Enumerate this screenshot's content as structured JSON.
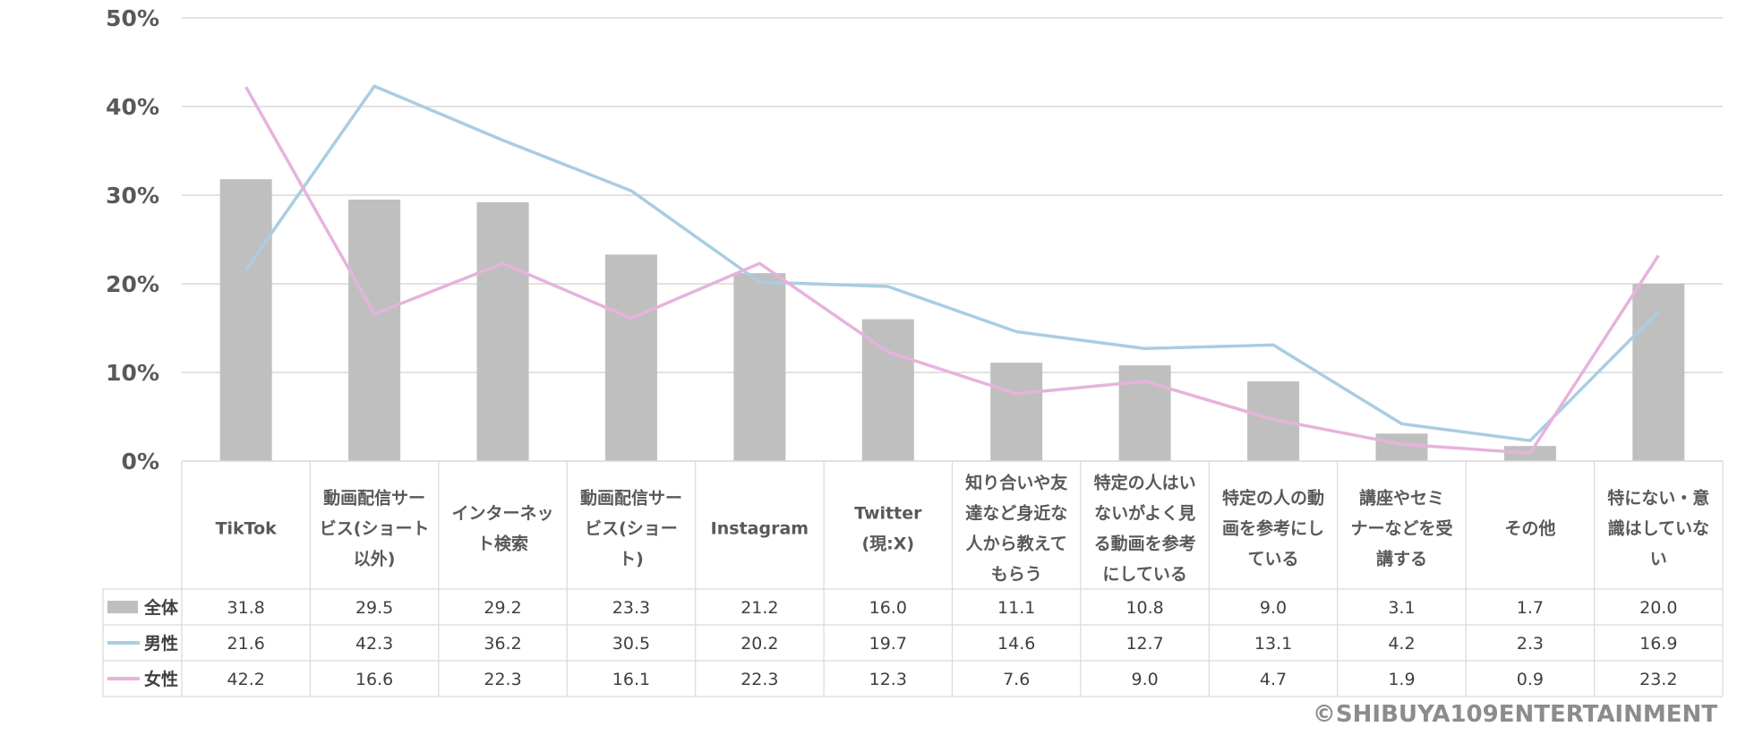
{
  "chart_data": {
    "type": "bar",
    "categories": [
      [
        "TikTok"
      ],
      [
        "動画配信サー",
        "ビス(ショート",
        "以外)"
      ],
      [
        "インターネッ",
        "ト検索"
      ],
      [
        "動画配信サー",
        "ビス(ショー",
        "ト)"
      ],
      [
        "Instagram"
      ],
      [
        "Twitter",
        "(現:X)"
      ],
      [
        "知り合いや友",
        "達など身近な",
        "人から教えて",
        "もらう"
      ],
      [
        "特定の人はい",
        "ないがよく見",
        "る動画を参考",
        "にしている"
      ],
      [
        "特定の人の動",
        "画を参考にし",
        "ている"
      ],
      [
        "講座やセミ",
        "ナーなどを受",
        "講する"
      ],
      [
        "その他"
      ],
      [
        "特にない・意",
        "識はしていな",
        "い"
      ]
    ],
    "series": [
      {
        "name": "全体",
        "type": "bar",
        "color": "#bfbfbf",
        "values": [
          31.8,
          29.5,
          29.2,
          23.3,
          21.2,
          16.0,
          11.1,
          10.8,
          9.0,
          3.1,
          1.7,
          20.0
        ]
      },
      {
        "name": "男性",
        "type": "line",
        "color": "#a9cde3",
        "values": [
          21.6,
          42.3,
          36.2,
          30.5,
          20.2,
          19.7,
          14.6,
          12.7,
          13.1,
          4.2,
          2.3,
          16.9
        ]
      },
      {
        "name": "女性",
        "type": "line",
        "color": "#e6b3dc",
        "values": [
          42.2,
          16.6,
          22.3,
          16.1,
          22.3,
          12.3,
          7.6,
          9.0,
          4.7,
          1.9,
          0.9,
          23.2
        ]
      }
    ],
    "ylim": [
      0,
      50
    ],
    "yticks": [
      "0%",
      "10%",
      "20%",
      "30%",
      "40%",
      "50%"
    ],
    "yticks_values": [
      0,
      10,
      20,
      30,
      40,
      50
    ],
    "grid": true,
    "legend": "data-table",
    "value_format": "one-decimal"
  },
  "copyright": "©SHIBUYA109ENTERTAINMENT"
}
